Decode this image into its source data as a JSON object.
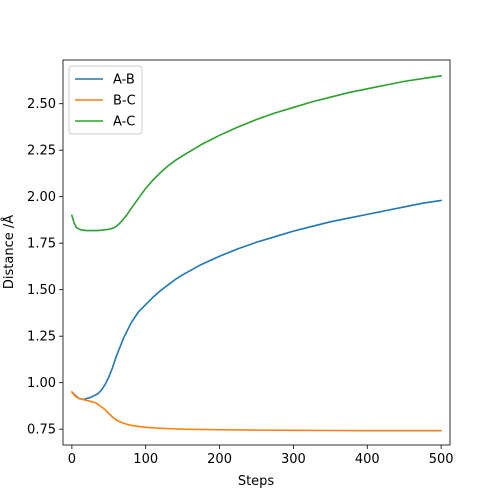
{
  "chart_data": {
    "type": "line",
    "title": "",
    "xlabel": "Steps",
    "ylabel": "Distance /Å",
    "xlim": [
      -12,
      512
    ],
    "ylim": [
      0.665,
      2.735
    ],
    "xticks": [
      0,
      100,
      200,
      300,
      400,
      500
    ],
    "xtick_labels": [
      "0",
      "100",
      "200",
      "300",
      "400",
      "500"
    ],
    "yticks": [
      0.75,
      1.0,
      1.25,
      1.5,
      1.75,
      2.0,
      2.25,
      2.5
    ],
    "ytick_labels": [
      "0.75",
      "1.00",
      "1.25",
      "1.50",
      "1.75",
      "2.00",
      "2.25",
      "2.50"
    ],
    "grid": false,
    "legend_position": "top-left",
    "series": [
      {
        "name": "A-B",
        "color": "#1f77b4",
        "x": [
          0,
          5,
          10,
          15,
          20,
          25,
          30,
          35,
          40,
          45,
          50,
          55,
          60,
          65,
          70,
          75,
          80,
          90,
          100,
          110,
          120,
          130,
          140,
          150,
          175,
          200,
          225,
          250,
          275,
          300,
          325,
          350,
          375,
          400,
          425,
          450,
          475,
          500
        ],
        "y": [
          0.95,
          0.93,
          0.915,
          0.91,
          0.915,
          0.92,
          0.93,
          0.94,
          0.96,
          0.99,
          1.03,
          1.08,
          1.14,
          1.19,
          1.24,
          1.28,
          1.32,
          1.38,
          1.42,
          1.46,
          1.495,
          1.525,
          1.555,
          1.58,
          1.635,
          1.68,
          1.72,
          1.755,
          1.785,
          1.815,
          1.84,
          1.865,
          1.885,
          1.905,
          1.925,
          1.945,
          1.965,
          1.98
        ]
      },
      {
        "name": "B-C",
        "color": "#ff7f0e",
        "x": [
          0,
          5,
          10,
          15,
          20,
          25,
          30,
          35,
          40,
          45,
          50,
          55,
          60,
          65,
          70,
          75,
          80,
          90,
          100,
          120,
          150,
          200,
          250,
          300,
          350,
          400,
          450,
          500
        ],
        "y": [
          0.95,
          0.925,
          0.915,
          0.91,
          0.905,
          0.9,
          0.895,
          0.885,
          0.87,
          0.855,
          0.835,
          0.815,
          0.8,
          0.79,
          0.782,
          0.776,
          0.771,
          0.765,
          0.76,
          0.755,
          0.75,
          0.747,
          0.745,
          0.744,
          0.743,
          0.742,
          0.742,
          0.742
        ]
      },
      {
        "name": "A-C",
        "color": "#2ca02c",
        "x": [
          0,
          3,
          6,
          10,
          15,
          20,
          25,
          30,
          35,
          40,
          45,
          50,
          55,
          60,
          65,
          70,
          75,
          80,
          90,
          100,
          110,
          120,
          130,
          140,
          150,
          175,
          200,
          225,
          250,
          275,
          300,
          325,
          350,
          375,
          400,
          425,
          450,
          475,
          500
        ],
        "y": [
          1.9,
          1.86,
          1.835,
          1.825,
          1.82,
          1.818,
          1.818,
          1.818,
          1.818,
          1.82,
          1.822,
          1.825,
          1.83,
          1.84,
          1.858,
          1.88,
          1.905,
          1.935,
          1.99,
          2.045,
          2.09,
          2.13,
          2.165,
          2.195,
          2.22,
          2.28,
          2.33,
          2.375,
          2.415,
          2.45,
          2.48,
          2.51,
          2.535,
          2.56,
          2.58,
          2.6,
          2.62,
          2.635,
          2.65
        ]
      }
    ]
  }
}
